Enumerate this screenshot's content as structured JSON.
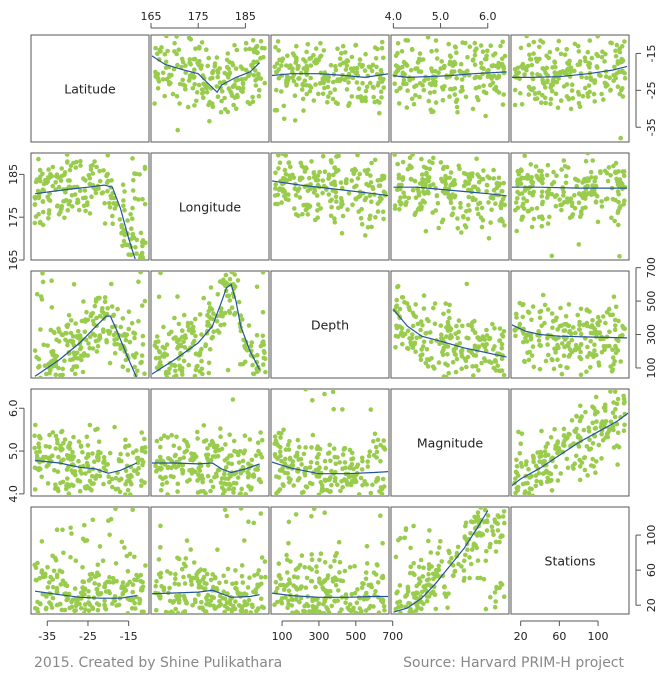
{
  "footer": {
    "credit": "2015. Created by Shine Pulikathara",
    "source": "Source: Harvard PRIM-H project"
  },
  "colors": {
    "points": "#99cc4d",
    "smooth": "#23539b",
    "frame": "#555555",
    "text": "#222222"
  },
  "chart_data": {
    "type": "scatter",
    "subtype": "scatterplot-matrix",
    "variables": [
      {
        "name": "Latitude",
        "range": [
          -39,
          -10
        ],
        "ticks": [
          -35,
          -25,
          -15
        ]
      },
      {
        "name": "Longitude",
        "range": [
          165,
          190
        ],
        "ticks": [
          165,
          175,
          185
        ]
      },
      {
        "name": "Depth",
        "range": [
          40,
          680
        ],
        "ticks": [
          100,
          300,
          500,
          700
        ]
      },
      {
        "name": "Magnitude",
        "range": [
          3.95,
          6.45
        ],
        "ticks": [
          "4.0",
          "5.0",
          "6.0"
        ]
      },
      {
        "name": "Stations",
        "range": [
          10,
          132
        ],
        "ticks": [
          20,
          60,
          100
        ]
      }
    ],
    "smoothers": {
      "0-1": [
        [
          165,
          -15.5
        ],
        [
          168,
          -18
        ],
        [
          172,
          -19.5
        ],
        [
          175,
          -20.5
        ],
        [
          177,
          -23
        ],
        [
          179,
          -25.5
        ],
        [
          180,
          -23.5
        ],
        [
          183,
          -21.5
        ],
        [
          186,
          -20
        ],
        [
          188,
          -17.5
        ]
      ],
      "0-2": [
        [
          40,
          -21
        ],
        [
          150,
          -20.5
        ],
        [
          300,
          -20.5
        ],
        [
          450,
          -21
        ],
        [
          550,
          -21.5
        ],
        [
          680,
          -20.5
        ]
      ],
      "0-3": [
        [
          4.0,
          -21
        ],
        [
          4.3,
          -21.5
        ],
        [
          4.7,
          -21.3
        ],
        [
          5.2,
          -21
        ],
        [
          5.7,
          -20.5
        ],
        [
          6.4,
          -20
        ]
      ],
      "0-4": [
        [
          10,
          -21.5
        ],
        [
          30,
          -21.5
        ],
        [
          60,
          -21.3
        ],
        [
          90,
          -20.5
        ],
        [
          115,
          -19.5
        ],
        [
          130,
          -18.5
        ]
      ],
      "1-0": [
        [
          -38,
          180.5
        ],
        [
          -30,
          181.5
        ],
        [
          -25,
          182
        ],
        [
          -21,
          182.5
        ],
        [
          -19,
          182
        ],
        [
          -17,
          177
        ],
        [
          -15,
          170
        ],
        [
          -13,
          164
        ]
      ],
      "1-2": [
        [
          40,
          183.5
        ],
        [
          200,
          182.5
        ],
        [
          400,
          181.5
        ],
        [
          600,
          180.5
        ],
        [
          680,
          180
        ]
      ],
      "1-3": [
        [
          4.0,
          182
        ],
        [
          4.5,
          182
        ],
        [
          5.0,
          181.5
        ],
        [
          5.5,
          181
        ],
        [
          6.0,
          180.5
        ],
        [
          6.4,
          180
        ]
      ],
      "1-4": [
        [
          10,
          182
        ],
        [
          40,
          182
        ],
        [
          80,
          181.8
        ],
        [
          130,
          181.8
        ]
      ],
      "2-0": [
        [
          -38,
          50
        ],
        [
          -32,
          150
        ],
        [
          -27,
          250
        ],
        [
          -23,
          350
        ],
        [
          -20.5,
          410
        ],
        [
          -19.5,
          410
        ],
        [
          -18,
          330
        ],
        [
          -15,
          150
        ],
        [
          -13,
          40
        ]
      ],
      "2-1": [
        [
          165,
          60
        ],
        [
          170,
          150
        ],
        [
          175,
          250
        ],
        [
          178,
          350
        ],
        [
          180,
          500
        ],
        [
          181,
          580
        ],
        [
          182,
          600
        ],
        [
          183,
          500
        ],
        [
          184,
          350
        ],
        [
          186,
          200
        ],
        [
          188,
          90
        ]
      ],
      "2-2": [],
      "2-3": [
        [
          4.0,
          450
        ],
        [
          4.3,
          350
        ],
        [
          4.6,
          290
        ],
        [
          5.0,
          260
        ],
        [
          5.5,
          220
        ],
        [
          6.0,
          190
        ],
        [
          6.4,
          165
        ]
      ],
      "2-4": [
        [
          10,
          360
        ],
        [
          25,
          320
        ],
        [
          40,
          300
        ],
        [
          60,
          290
        ],
        [
          90,
          285
        ],
        [
          130,
          280
        ]
      ],
      "3-0": [
        [
          -38,
          4.78
        ],
        [
          -32,
          4.72
        ],
        [
          -27,
          4.62
        ],
        [
          -23,
          4.58
        ],
        [
          -20,
          4.48
        ],
        [
          -17,
          4.55
        ],
        [
          -13,
          4.72
        ]
      ],
      "3-1": [
        [
          165,
          4.72
        ],
        [
          170,
          4.72
        ],
        [
          175,
          4.7
        ],
        [
          178,
          4.72
        ],
        [
          180,
          4.58
        ],
        [
          182,
          4.5
        ],
        [
          185,
          4.58
        ],
        [
          188,
          4.7
        ]
      ],
      "3-2": [
        [
          40,
          4.75
        ],
        [
          150,
          4.6
        ],
        [
          300,
          4.47
        ],
        [
          450,
          4.47
        ],
        [
          600,
          4.5
        ],
        [
          680,
          4.52
        ]
      ],
      "3-4": [
        [
          10,
          4.18
        ],
        [
          20,
          4.35
        ],
        [
          40,
          4.6
        ],
        [
          60,
          4.9
        ],
        [
          80,
          5.2
        ],
        [
          100,
          5.45
        ],
        [
          120,
          5.7
        ],
        [
          132,
          5.9
        ]
      ],
      "4-0": [
        [
          -38,
          36
        ],
        [
          -32,
          32
        ],
        [
          -27,
          29
        ],
        [
          -22,
          28
        ],
        [
          -17,
          28
        ],
        [
          -13,
          31
        ]
      ],
      "4-1": [
        [
          165,
          33
        ],
        [
          170,
          34
        ],
        [
          175,
          35
        ],
        [
          178,
          37
        ],
        [
          180,
          33
        ],
        [
          182,
          29
        ],
        [
          186,
          30
        ],
        [
          188,
          32
        ]
      ],
      "4-2": [
        [
          40,
          34
        ],
        [
          150,
          31
        ],
        [
          300,
          29
        ],
        [
          450,
          29
        ],
        [
          600,
          30
        ],
        [
          680,
          30
        ]
      ],
      "4-3": [
        [
          4.0,
          12
        ],
        [
          4.3,
          17
        ],
        [
          4.6,
          28
        ],
        [
          4.9,
          45
        ],
        [
          5.2,
          65
        ],
        [
          5.5,
          85
        ],
        [
          5.8,
          110
        ],
        [
          6.0,
          128
        ]
      ]
    }
  }
}
